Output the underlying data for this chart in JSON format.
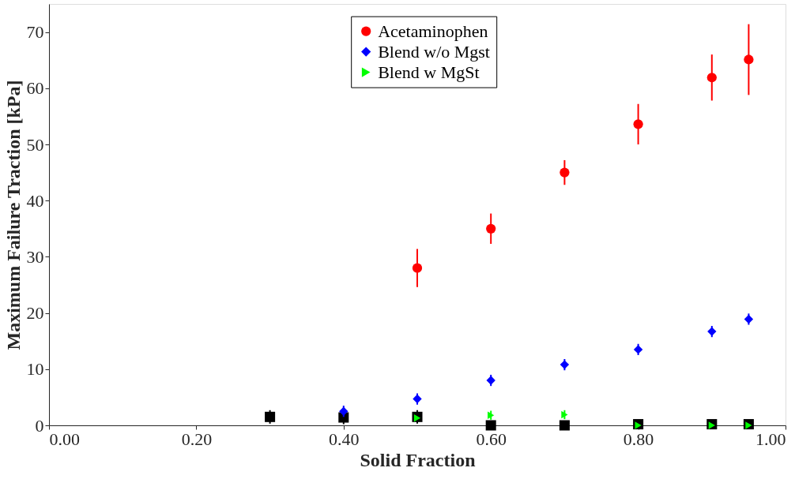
{
  "chart_data": {
    "type": "scatter",
    "xlabel": "Solid Fraction",
    "ylabel": "Maximum Failure Traction [kPa]",
    "xlim": [
      0,
      1
    ],
    "xticks": [
      {
        "value": 0,
        "label": "0.00"
      },
      {
        "value": 0.2,
        "label": "0.20"
      },
      {
        "value": 0.4,
        "label": "0.40"
      },
      {
        "value": 0.6,
        "label": "0.60"
      },
      {
        "value": 0.8,
        "label": "0.80"
      },
      {
        "value": 1,
        "label": "1.00"
      }
    ],
    "ylim": [
      0,
      75
    ],
    "yticks": [
      0,
      10,
      20,
      30,
      40,
      50,
      60,
      70
    ],
    "grid": false,
    "legend": "top",
    "series": [
      {
        "name": "Acetaminophen",
        "color": "#ff0000",
        "marker": "circle",
        "x": [
          0.5,
          0.6,
          0.7,
          0.8,
          0.9,
          0.95
        ],
        "values": [
          28,
          35,
          45,
          53.6,
          61.9,
          65.1
        ],
        "errors": [
          3.4,
          2.7,
          2.2,
          3.6,
          4.1,
          6.3
        ]
      },
      {
        "name": "Blend w/o Mgst",
        "color": "#0000ff",
        "marker": "diamond",
        "x": [
          0.4,
          0.5,
          0.6,
          0.7,
          0.8,
          0.9,
          0.95
        ],
        "values": [
          2.5,
          4.7,
          8,
          10.8,
          13.5,
          16.7,
          18.9
        ],
        "errors": [
          1,
          1,
          1,
          1,
          1,
          1,
          1
        ]
      },
      {
        "name": "Blend w MgSt",
        "color": "#00ff00",
        "marker": "triangle",
        "x": [
          0.5,
          0.6,
          0.7,
          0.8,
          0.9,
          0.95
        ],
        "values": [
          1.3,
          1.8,
          1.9,
          0,
          0,
          0
        ],
        "errors": [
          null,
          0.8,
          0.8,
          null,
          null,
          null
        ]
      },
      {
        "color": "#000000",
        "marker": "square",
        "x": [
          0.3,
          0.4,
          0.5,
          0.6,
          0.7,
          0.8,
          0.9,
          0.95
        ],
        "values": [
          1.5,
          1.4,
          1.5,
          0,
          0,
          0.2,
          0.2,
          0.2
        ],
        "errors": [
          1.2,
          1.2,
          1.2,
          null,
          null,
          null,
          null,
          null
        ]
      }
    ]
  }
}
